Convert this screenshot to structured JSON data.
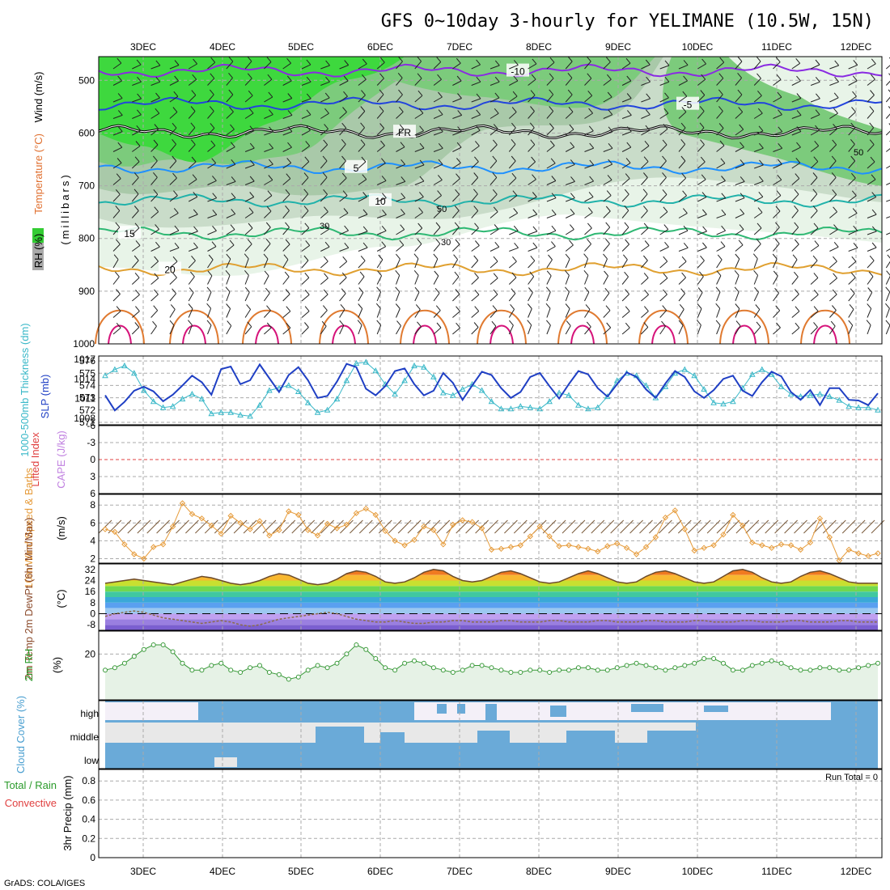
{
  "title": "GFS 0~10day 3-hourly for YELIMANE (10.5W, 15N)",
  "credit": "GrADS: COLA/IGES",
  "dates": [
    "3DEC",
    "4DEC",
    "5DEC",
    "6DEC",
    "7DEC",
    "8DEC",
    "9DEC",
    "10DEC",
    "11DEC",
    "12DEC"
  ],
  "panels": {
    "upper": {
      "ylabel_units": "(millibars)",
      "label_wind": "Wind (m/s)",
      "label_temp": "Temperature (°C)",
      "label_rh": "RH (%)",
      "levels": [
        "500",
        "600",
        "700",
        "800",
        "900",
        "1000"
      ],
      "contours": [
        {
          "label": "-10",
          "color": "#8a2be2",
          "p": 482
        },
        {
          "label": "-5",
          "color": "#2244dd",
          "p": 545
        },
        {
          "label": "FR",
          "color": "#000000",
          "p": 598
        },
        {
          "label": "5",
          "color": "#1e90ff",
          "p": 665
        },
        {
          "label": "10",
          "color": "#20b2aa",
          "p": 728
        },
        {
          "label": "15",
          "color": "#2eb873",
          "p": 790
        },
        {
          "label": "20",
          "color": "#e0a030",
          "p": 858
        }
      ],
      "rh_labels": [
        "30",
        "50"
      ]
    },
    "thick": {
      "label_left": "1000-500mb Thickness (dm)",
      "label_right": "SLP (mb)",
      "left_ticks": [
        "576",
        "575",
        "574",
        "573",
        "572",
        "571"
      ],
      "right_ticks": [
        "1017",
        "1014",
        "1011",
        "1008"
      ]
    },
    "cape": {
      "label_left": "Lifted Index",
      "label_right": "CAPE (J/kg)",
      "ticks": [
        "-6",
        "-3",
        "0",
        "3",
        "6"
      ]
    },
    "wind10": {
      "label": "10m Wind Speed & Barbs",
      "units": "(m/s)",
      "ticks": [
        "2",
        "4",
        "6",
        "8"
      ]
    },
    "temp2m": {
      "label": "2m Temp 2m DewPt (6hr Min/Max)",
      "units": "(°C)",
      "ticks": [
        "32",
        "24",
        "16",
        "8",
        "0",
        "-8"
      ]
    },
    "rh2m": {
      "label": "2m RH",
      "units": "(%)",
      "ticks": [
        "20"
      ]
    },
    "cloud": {
      "label": "Cloud Cover (%)",
      "levels": [
        "high",
        "middle",
        "low"
      ]
    },
    "precip": {
      "label_total": "Total / Rain",
      "label_conv": "Convective",
      "label_axis": "3hr Precip (mm)",
      "run_total": "Run Total = 0",
      "ticks": [
        "0.8",
        "0.6",
        "0.4",
        "0.2",
        "0"
      ]
    }
  },
  "chart_data": [
    {
      "type": "line",
      "title": "1000-500mb Thickness (dm) / SLP (mb)",
      "x_start": "2DEC 15Z",
      "x_step_hours": 3,
      "series": [
        {
          "name": "Thickness (dm)",
          "color": "#3ab8c8",
          "values": [
            574.8,
            575.3,
            575.6,
            575.0,
            573.6,
            572.7,
            572.2,
            572.3,
            572.9,
            573.3,
            572.9,
            571.7,
            571.8,
            571.8,
            571.6,
            571.5,
            572.4,
            573.6,
            573.8,
            574.0,
            573.5,
            572.6,
            571.8,
            572.0,
            572.9,
            574.4,
            575.8,
            575.9,
            575.2,
            574.1,
            573.3,
            574.4,
            575.6,
            575.5,
            574.7,
            573.4,
            573.2,
            573.7,
            574.1,
            573.6,
            572.7,
            572.1,
            572.1,
            572.3,
            572.2,
            572.1,
            572.7,
            573.4,
            573.2,
            572.4,
            572.1,
            572.2,
            573.1,
            574.4,
            575.0,
            574.8,
            574.0,
            573.0,
            573.9,
            575.0,
            575.3,
            574.8,
            573.7,
            572.6,
            572.5,
            572.7,
            573.8,
            574.9,
            575.3,
            574.9,
            573.9,
            573.3,
            573.1,
            573.2,
            573.3,
            573.1,
            572.8,
            572.3,
            572.2,
            572.2,
            572.0
          ]
        },
        {
          "name": "SLP (mb)",
          "color": "#1f3fc4",
          "values": [
            1011.5,
            1009.2,
            1010.5,
            1012.2,
            1012.8,
            1012.1,
            1010.6,
            1011.6,
            1013.0,
            1014.5,
            1013.5,
            1011.6,
            1015.5,
            1015.9,
            1013.2,
            1013.8,
            1016.2,
            1014.1,
            1012.0,
            1014.6,
            1015.8,
            1013.8,
            1011.1,
            1011.4,
            1013.6,
            1016.3,
            1015.8,
            1012.5,
            1011.5,
            1012.9,
            1015.2,
            1015.6,
            1013.2,
            1011.5,
            1012.2,
            1014.9,
            1013.4,
            1010.8,
            1013.0,
            1015.1,
            1014.6,
            1012.6,
            1011.1,
            1012.0,
            1014.3,
            1014.9,
            1012.9,
            1011.0,
            1013.2,
            1015.2,
            1014.7,
            1012.6,
            1011.3,
            1013.2,
            1015.0,
            1014.3,
            1012.4,
            1011.1,
            1013.3,
            1015.2,
            1014.3,
            1012.1,
            1011.1,
            1012.3,
            1014.0,
            1014.5,
            1012.2,
            1011.4,
            1013.5,
            1015.1,
            1014.4,
            1012.0,
            1010.8,
            1012.3,
            1010.0,
            1012.6,
            1012.6,
            1010.8,
            1010.7,
            1010.0,
            1011.8
          ]
        }
      ],
      "ylim_left": [
        571,
        576
      ],
      "ylim_right": [
        1007,
        1017
      ]
    },
    {
      "type": "line",
      "title": "10m Wind Speed (m/s)",
      "series": [
        {
          "name": "10m Wind Speed",
          "color": "#e69b3a",
          "values": [
            5.3,
            5.0,
            3.6,
            2.5,
            2.0,
            3.3,
            3.6,
            5.6,
            8.2,
            7.0,
            6.5,
            5.7,
            4.8,
            6.8,
            6.0,
            5.3,
            6.2,
            4.6,
            5.2,
            7.3,
            6.9,
            5.2,
            4.6,
            5.9,
            5.4,
            5.8,
            7.1,
            7.6,
            6.9,
            5.1,
            4.0,
            3.5,
            4.1,
            5.6,
            5.2,
            3.6,
            5.8,
            6.3,
            6.1,
            5.4,
            3.0,
            3.1,
            3.3,
            3.5,
            4.5,
            5.6,
            4.5,
            3.4,
            3.5,
            3.3,
            3.1,
            2.8,
            3.4,
            3.7,
            3.2,
            2.5,
            3.3,
            4.4,
            6.6,
            7.4,
            5.3,
            2.9,
            3.2,
            3.5,
            4.7,
            6.9,
            5.7,
            3.8,
            3.5,
            3.2,
            3.6,
            3.5,
            3.0,
            3.8,
            6.5,
            4.4,
            1.8,
            3.0,
            2.6,
            2.3,
            2.6
          ]
        }
      ],
      "ylim": [
        1.5,
        9
      ]
    },
    {
      "type": "area",
      "title": "2m Temp (°C)",
      "series": [
        {
          "name": "2m Temp",
          "color": "#6b4a2a",
          "values": [
            22,
            23,
            24,
            25,
            24,
            23,
            22,
            21,
            23,
            25,
            27,
            26,
            24,
            22,
            21,
            22,
            24,
            27,
            29,
            28,
            25,
            22,
            21,
            22,
            25,
            29,
            31,
            30,
            27,
            23,
            22,
            23,
            26,
            30,
            32,
            31,
            27,
            24,
            23,
            24,
            27,
            30,
            31,
            29,
            26,
            23,
            22,
            23,
            26,
            29,
            31,
            29,
            26,
            23,
            22,
            23,
            27,
            30,
            31,
            29,
            26,
            23,
            22,
            23,
            27,
            31,
            32,
            30,
            26,
            23,
            22,
            23,
            27,
            30,
            31,
            29,
            26,
            23,
            22,
            22,
            22
          ]
        },
        {
          "name": "2m DewPt",
          "color": "#8b6b4a",
          "values": [
            -2,
            0,
            1,
            2,
            1,
            -1,
            -3,
            -4,
            -5,
            -6,
            -7,
            -6,
            -5,
            -6,
            -8,
            -9,
            -8,
            -6,
            -4,
            -3,
            -2,
            -1,
            0,
            1,
            0,
            -2,
            -4,
            -5,
            -6,
            -6,
            -5,
            -6,
            -7,
            -7,
            -6,
            -6,
            -5,
            -5,
            -6,
            -6,
            -6,
            -5,
            -5,
            -6,
            -6,
            -6,
            -5,
            -5,
            -6,
            -6,
            -6,
            -5,
            -5,
            -6,
            -6,
            -6,
            -5,
            -5,
            -6,
            -6,
            -6,
            -5,
            -5,
            -6,
            -6,
            -6,
            -5,
            -5,
            -6,
            -6,
            -6,
            -5,
            -5,
            -6,
            -6,
            -6,
            -5,
            -5,
            -6,
            -6,
            -6
          ]
        }
      ],
      "ylim": [
        -12,
        36
      ]
    },
    {
      "type": "area",
      "title": "2m RH (%)",
      "series": [
        {
          "name": "2m RH",
          "color": "#3a9a3a",
          "values": [
            13,
            14,
            16,
            19,
            22,
            24,
            24,
            21,
            16,
            13,
            13,
            15,
            16,
            13,
            12,
            14,
            15,
            12,
            11,
            9,
            10,
            13,
            15,
            14,
            16,
            20,
            24,
            22,
            18,
            14,
            13,
            16,
            17,
            16,
            14,
            13,
            12,
            13,
            15,
            15,
            14,
            13,
            12,
            12,
            13,
            13,
            12,
            13,
            13,
            14,
            14,
            13,
            13,
            14,
            15,
            16,
            15,
            14,
            13,
            14,
            15,
            16,
            18,
            18,
            16,
            13,
            13,
            15,
            16,
            17,
            16,
            14,
            13,
            13,
            14,
            14,
            13,
            13,
            14,
            15,
            16
          ]
        }
      ],
      "ylim": [
        0,
        30
      ]
    }
  ]
}
